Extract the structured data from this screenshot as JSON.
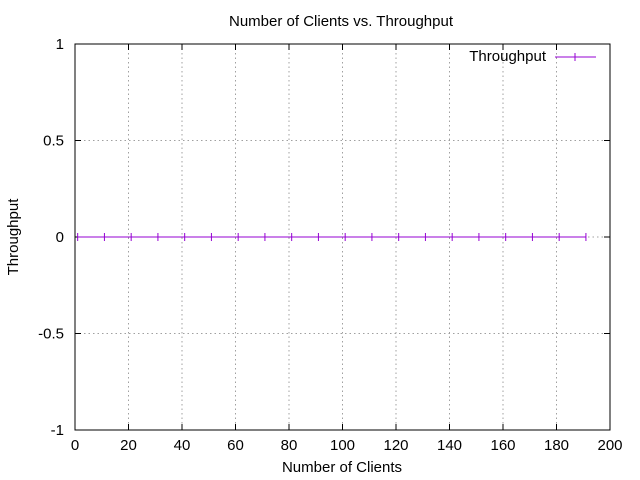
{
  "chart_data": {
    "type": "line",
    "title": "Number of Clients vs. Throughput",
    "xlabel": "Number of Clients",
    "ylabel": "Throughput",
    "xlim": [
      0,
      200
    ],
    "ylim": [
      -1,
      1
    ],
    "xticks": [
      0,
      20,
      40,
      60,
      80,
      100,
      120,
      140,
      160,
      180,
      200
    ],
    "yticks": [
      -1,
      -0.5,
      0,
      0.5,
      1
    ],
    "xtick_labels": [
      "0",
      "20",
      "40",
      "60",
      "80",
      "100",
      "120",
      "140",
      "160",
      "180",
      "200"
    ],
    "ytick_labels": [
      "-1",
      "-0.5",
      "0",
      "0.5",
      "1"
    ],
    "grid": true,
    "legend_position": "top-right",
    "series": [
      {
        "name": "Throughput",
        "color": "#9400d3",
        "marker": "vertical-tick",
        "x": [
          1,
          11,
          21,
          31,
          41,
          51,
          61,
          71,
          81,
          91,
          101,
          111,
          121,
          131,
          141,
          151,
          161,
          171,
          181,
          191
        ],
        "y": [
          0,
          0,
          0,
          0,
          0,
          0,
          0,
          0,
          0,
          0,
          0,
          0,
          0,
          0,
          0,
          0,
          0,
          0,
          0,
          0
        ]
      }
    ]
  }
}
